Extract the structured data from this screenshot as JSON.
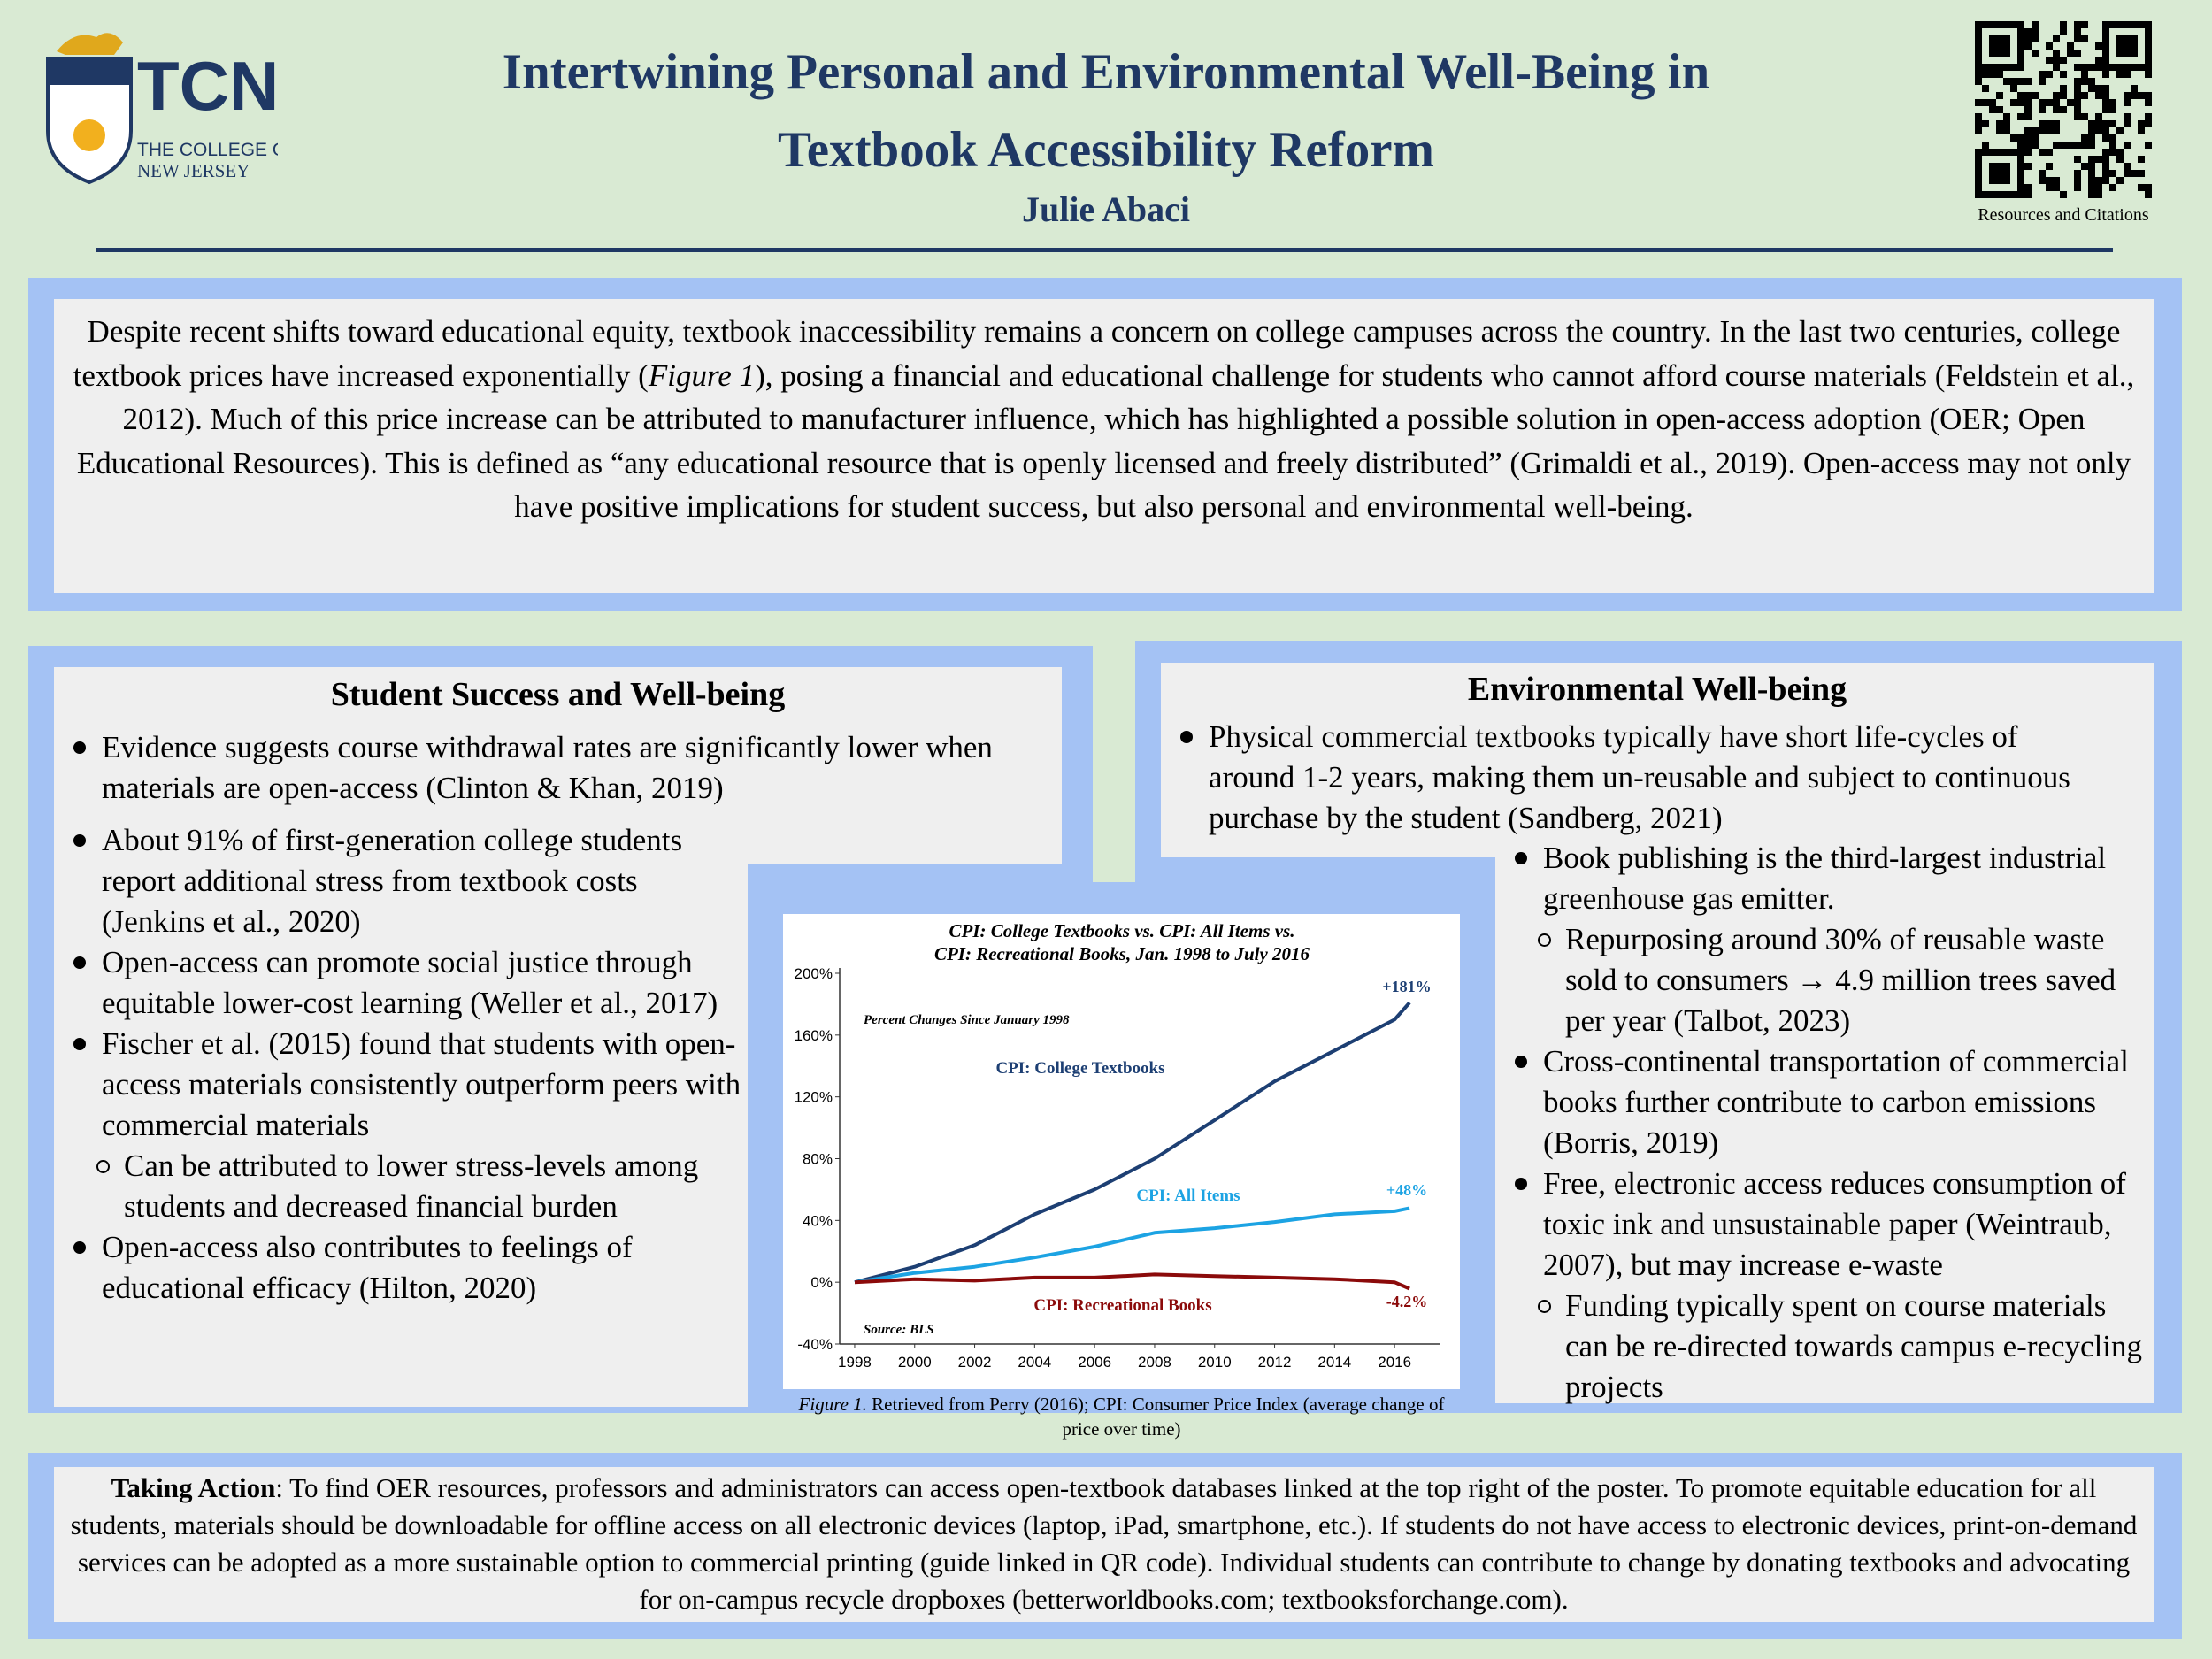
{
  "header": {
    "logo": {
      "acronym": "TCNJ",
      "line1": "THE COLLEGE OF",
      "line2": "NEW JERSEY"
    },
    "title": [
      "Intertwining Personal and Environmental Well-Being in",
      "Textbook Accessibility Reform"
    ],
    "author": "Julie Abaci",
    "qr_caption": "Resources and Citations"
  },
  "intro": {
    "text_before": "Despite recent shifts toward educational equity, textbook inaccessibility remains a concern on college campuses across the country. In the last two centuries, college textbook prices have increased exponentially (",
    "figure_ref": "Figure 1",
    "text_after": "), posing a financial and educational challenge for students who cannot afford course materials (Feldstein et al., 2012). Much of this price increase can be attributed to manufacturer influence, which has highlighted a possible solution in open-access adoption (OER; Open Educational Resources). This is defined as “any educational resource that is openly licensed and freely distributed” (Grimaldi et al., 2019). Open-access may not only have positive implications for student success, but also personal and environmental well-being."
  },
  "student_section": {
    "heading": "Student Success and Well-being",
    "items": [
      {
        "text": "Evidence suggests course withdrawal rates are significantly lower when materials are open-access (Clinton & Khan, 2019)"
      },
      {
        "text": "About 91% of first-generation college students report additional stress from textbook costs (Jenkins et al., 2020)"
      },
      {
        "text": "Open-access can promote social justice through equitable lower-cost learning (Weller et al., 2017)"
      },
      {
        "text": "Fischer et al. (2015) found that students with open-access materials consistently outperform peers with commercial materials",
        "subitems": [
          "Can be attributed to lower stress-levels among students and decreased financial burden"
        ]
      },
      {
        "text": "Open-access also contributes to feelings of educational efficacy (Hilton, 2020)"
      }
    ]
  },
  "environment_section": {
    "heading": "Environmental Well-being",
    "items": [
      {
        "text": "Physical commercial textbooks typically have short life-cycles of around 1-2 years, making them un-reusable and subject to continuous purchase by the student (Sandberg, 2021)"
      },
      {
        "text": "Book publishing is the third-largest industrial greenhouse gas emitter.",
        "subitems": [
          "Repurposing around 30% of reusable waste sold to consumers → 4.9 million trees saved per year (Talbot, 2023)"
        ]
      },
      {
        "text": "Cross-continental transportation of commercial books further contribute to carbon emissions (Borris, 2019)"
      },
      {
        "text": "Free, electronic access reduces consumption of toxic ink and unsustainable paper (Weintraub, 2007), but may increase e-waste",
        "subitems": [
          "Funding typically spent on course materials can be re-directed towards campus e-recycling projects"
        ]
      }
    ]
  },
  "figure": {
    "chart_data": {
      "type": "line",
      "title": [
        "CPI: College Textbooks vs. CPI: All Items vs.",
        "CPI: Recreational Books, Jan. 1998 to July 2016"
      ],
      "annotations": [
        "Percent Changes Since January 1998",
        "Source: BLS"
      ],
      "x": [
        1998,
        2000,
        2002,
        2004,
        2006,
        2008,
        2010,
        2012,
        2014,
        2016,
        2016.5
      ],
      "series": [
        {
          "name": "CPI: College Textbooks",
          "color": "#1d3f73",
          "end_label": "+181%",
          "values": [
            0,
            10,
            24,
            44,
            60,
            80,
            105,
            130,
            150,
            170,
            181
          ]
        },
        {
          "name": "CPI: All Items",
          "color": "#1ca3e3",
          "end_label": "+48%",
          "values": [
            0,
            6,
            10,
            16,
            23,
            32,
            35,
            39,
            44,
            46,
            48
          ]
        },
        {
          "name": "CPI: Recreational Books",
          "color": "#8b0a0a",
          "end_label": "-4.2%",
          "values": [
            0,
            2,
            1,
            3,
            3,
            5,
            4,
            3,
            2,
            0,
            -4.2
          ]
        }
      ],
      "xlim": [
        1997.5,
        2017.5
      ],
      "ylim": [
        -40,
        200
      ],
      "xticks": [
        1998,
        2000,
        2002,
        2004,
        2006,
        2008,
        2010,
        2012,
        2014,
        2016
      ],
      "yticks": [
        {
          "value": -40,
          "label": "-40%"
        },
        {
          "value": 0,
          "label": "0%"
        },
        {
          "value": 40,
          "label": "40%"
        },
        {
          "value": 80,
          "label": "80%"
        },
        {
          "value": 120,
          "label": "120%"
        },
        {
          "value": 160,
          "label": "160%"
        },
        {
          "value": 200,
          "label": "200%"
        }
      ]
    },
    "caption_label": "Figure 1.",
    "caption": "Retrieved from Perry (2016); CPI: Consumer Price Index (average change of price over time)"
  },
  "action": {
    "label": "Taking Action",
    "text": ": To find OER resources, professors and administrators can access open-textbook databases linked at the top right of the poster. To promote equitable education for all students, materials should be downloadable for offline access on all electronic devices (laptop, iPad, smartphone, etc.). If students do not have access to electronic devices, print-on-demand services can be adopted as a more sustainable option to commercial printing (guide linked in QR code). Individual students can contribute to change by donating textbooks and advocating for on-campus recycle dropboxes (betterworldbooks.com; textbooksforchange.com)."
  }
}
